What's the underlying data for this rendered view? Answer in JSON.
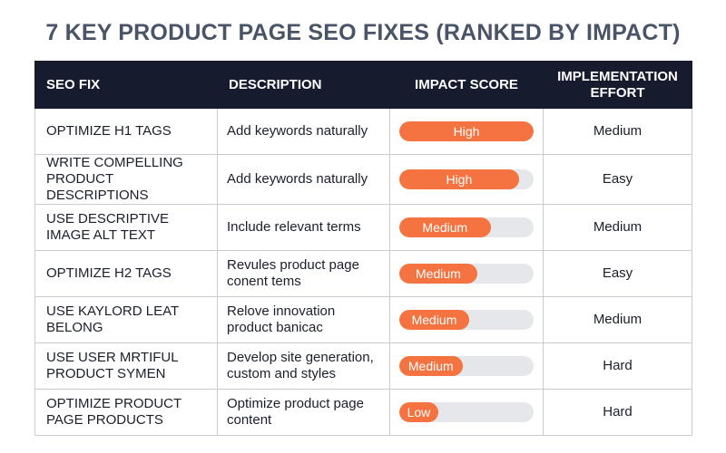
{
  "title": "7 KEY PRODUCT PAGE SEO FIXES (RANKED BY IMPACT)",
  "colors": {
    "bar_fill": "#f47340",
    "bar_track": "#e6e7ea",
    "header_bg": "#171b2e",
    "title": "#4a5468"
  },
  "headers": {
    "fix": "SEO FIX",
    "description": "DESCRIPTION",
    "impact": "IMPACT SCORE",
    "effort": "IMPLEMENTATION EFFORT"
  },
  "rows": [
    {
      "fix": "OPTIMIZE H1 TAGS",
      "description": "Add keywords naturally",
      "impact_label": "High",
      "impact_level": 1.0,
      "effort": "Medium"
    },
    {
      "fix": "WRITE COMPELLING PRODUCT DESCRIPTIONS",
      "description": "Add keywords naturally",
      "impact_label": "High",
      "impact_level": 0.89,
      "effort": "Easy"
    },
    {
      "fix": "USE DESCRIPTIVE IMAGE ALT TEXT",
      "description": "Include relevant terms",
      "impact_label": "Medium",
      "impact_level": 0.68,
      "effort": "Medium"
    },
    {
      "fix": "OPTIMIZE H2 TAGS",
      "description": "Revules product page conent tems",
      "impact_label": "Medium",
      "impact_level": 0.58,
      "effort": "Easy"
    },
    {
      "fix": "USE KAYLORD LEAT BELONG",
      "description": "Relove innovation product banicac",
      "impact_label": "Medium",
      "impact_level": 0.52,
      "effort": "Medium"
    },
    {
      "fix": "USE USER MRTIFUL PRODUCT SYMEN",
      "description": "Develop site generation, custom and styles",
      "impact_label": "Medium",
      "impact_level": 0.47,
      "effort": "Hard"
    },
    {
      "fix": "OPTIMIZE PRODUCT PAGE PRODUCTS",
      "description": "Optimize product page content",
      "impact_label": "Low",
      "impact_level": 0.29,
      "effort": "Hard"
    }
  ]
}
